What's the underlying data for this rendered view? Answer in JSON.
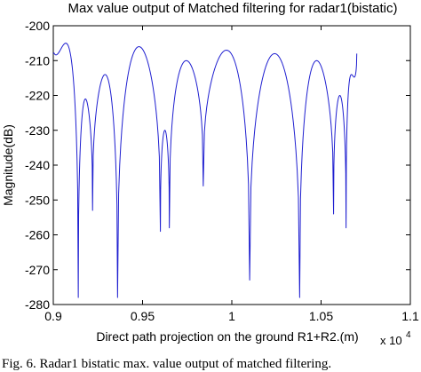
{
  "chart_data": {
    "type": "line",
    "title": "Max value output of Matched filtering for radar1(bistatic)",
    "xlabel": "Direct path projection on the ground R1+R2.(m)",
    "ylabel": "Magnitude(dB)",
    "x_exponent_base": "x 10",
    "x_exponent_power": "4",
    "xlim": [
      0.9,
      1.1
    ],
    "ylim": [
      -280,
      -200
    ],
    "x_ticks": [
      0.9,
      0.95,
      1.0,
      1.05,
      1.1
    ],
    "x_tick_labels": [
      "0.9",
      "0.95",
      "1",
      "1.05",
      "1.1"
    ],
    "y_ticks": [
      -200,
      -210,
      -220,
      -230,
      -240,
      -250,
      -260,
      -270,
      -280
    ],
    "y_tick_labels": [
      "-200",
      "-210",
      "-220",
      "-230",
      "-240",
      "-250",
      "-260",
      "-270",
      "-280"
    ],
    "grid": false,
    "line_color": "#1f1fd0",
    "series": [
      {
        "lobes": [
          {
            "x0": 0.9,
            "x1": 0.914,
            "peak": -205,
            "left_depth": -208,
            "right_depth": -278
          },
          {
            "x0": 0.914,
            "x1": 0.922,
            "peak": -221,
            "left_depth": -278,
            "right_depth": -253
          },
          {
            "x0": 0.922,
            "x1": 0.936,
            "peak": -214,
            "left_depth": -253,
            "right_depth": -278
          },
          {
            "x0": 0.936,
            "x1": 0.96,
            "peak": -206,
            "left_depth": -278,
            "right_depth": -259
          },
          {
            "x0": 0.96,
            "x1": 0.965,
            "peak": -230,
            "left_depth": -259,
            "right_depth": -258
          },
          {
            "x0": 0.965,
            "x1": 0.984,
            "peak": -210,
            "left_depth": -258,
            "right_depth": -246
          },
          {
            "x0": 0.984,
            "x1": 1.01,
            "peak": -207,
            "left_depth": -246,
            "right_depth": -273
          },
          {
            "x0": 1.01,
            "x1": 1.038,
            "peak": -208,
            "left_depth": -273,
            "right_depth": -278
          },
          {
            "x0": 1.038,
            "x1": 1.057,
            "peak": -210,
            "left_depth": -278,
            "right_depth": -254
          },
          {
            "x0": 1.057,
            "x1": 1.064,
            "peak": -220,
            "left_depth": -254,
            "right_depth": -258
          },
          {
            "x0": 1.064,
            "x1": 1.07,
            "peak": -214,
            "left_depth": -258,
            "right_depth": -208
          }
        ]
      }
    ]
  },
  "caption": "Fig. 6.   Radar1 bistatic max. value output of matched filtering."
}
